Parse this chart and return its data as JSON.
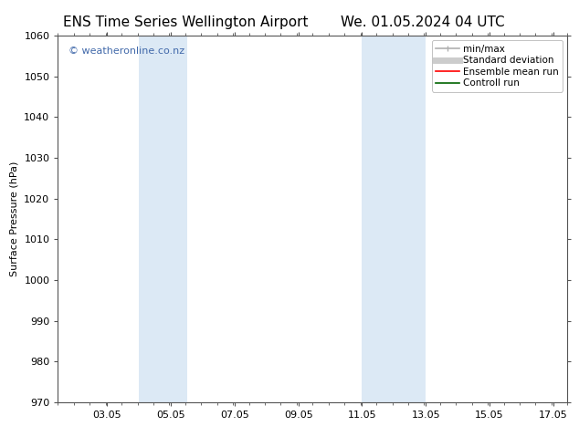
{
  "title_left": "ENS Time Series Wellington Airport",
  "title_right": "We. 01.05.2024 04 UTC",
  "ylabel": "Surface Pressure (hPa)",
  "ylim": [
    970,
    1060
  ],
  "yticks": [
    970,
    980,
    990,
    1000,
    1010,
    1020,
    1030,
    1040,
    1050,
    1060
  ],
  "xlim_start": 1.5,
  "xlim_end": 17.5,
  "xtick_positions": [
    3.05,
    5.05,
    7.05,
    9.05,
    11.05,
    13.05,
    15.05,
    17.05
  ],
  "xtick_labels": [
    "03.05",
    "05.05",
    "07.05",
    "09.05",
    "11.05",
    "13.05",
    "15.05",
    "17.05"
  ],
  "shaded_bands": [
    {
      "x_start": 4.05,
      "x_end": 5.55
    },
    {
      "x_start": 11.05,
      "x_end": 13.05
    }
  ],
  "shade_color": "#dce9f5",
  "watermark_text": "© weatheronline.co.nz",
  "watermark_color": "#4169aa",
  "legend_entries": [
    {
      "label": "min/max",
      "color": "#b0b0b0",
      "lw": 1.2
    },
    {
      "label": "Standard deviation",
      "color": "#cccccc",
      "lw": 5
    },
    {
      "label": "Ensemble mean run",
      "color": "#ff0000",
      "lw": 1.2
    },
    {
      "label": "Controll run",
      "color": "#006400",
      "lw": 1.2
    }
  ],
  "bg_color": "#ffffff",
  "plot_bg_color": "#ffffff",
  "spine_color": "#555555",
  "title_fontsize": 11,
  "watermark_fontsize": 8,
  "axis_label_fontsize": 8,
  "tick_fontsize": 8,
  "legend_fontsize": 7.5
}
